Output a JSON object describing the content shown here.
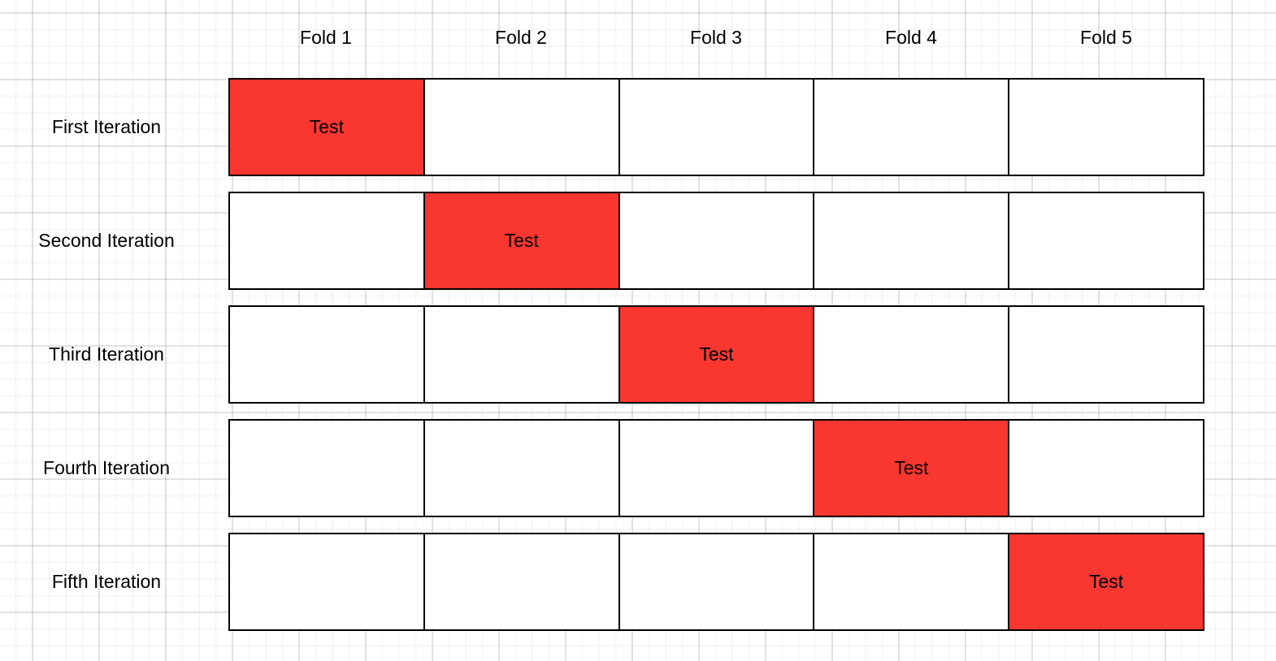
{
  "diagram": {
    "kind": "k-fold cross-validation grid",
    "folds": [
      "Fold 1",
      "Fold 2",
      "Fold 3",
      "Fold 4",
      "Fold 5"
    ],
    "iterations": [
      {
        "label": "First Iteration",
        "test_fold": "Fold 1",
        "test_label": "Test"
      },
      {
        "label": "Second Iteration",
        "test_fold": "Fold 2",
        "test_label": "Test"
      },
      {
        "label": "Third Iteration",
        "test_fold": "Fold 3",
        "test_label": "Test"
      },
      {
        "label": "Fourth Iteration",
        "test_fold": "Fold 4",
        "test_label": "Test"
      },
      {
        "label": "Fifth Iteration",
        "test_fold": "Fold 5",
        "test_label": "Test"
      }
    ],
    "colors": {
      "test_cell_fill": "#FA3630",
      "cell_fill": "#FFFFFF",
      "cell_border": "#000000",
      "text": "#000000"
    }
  }
}
